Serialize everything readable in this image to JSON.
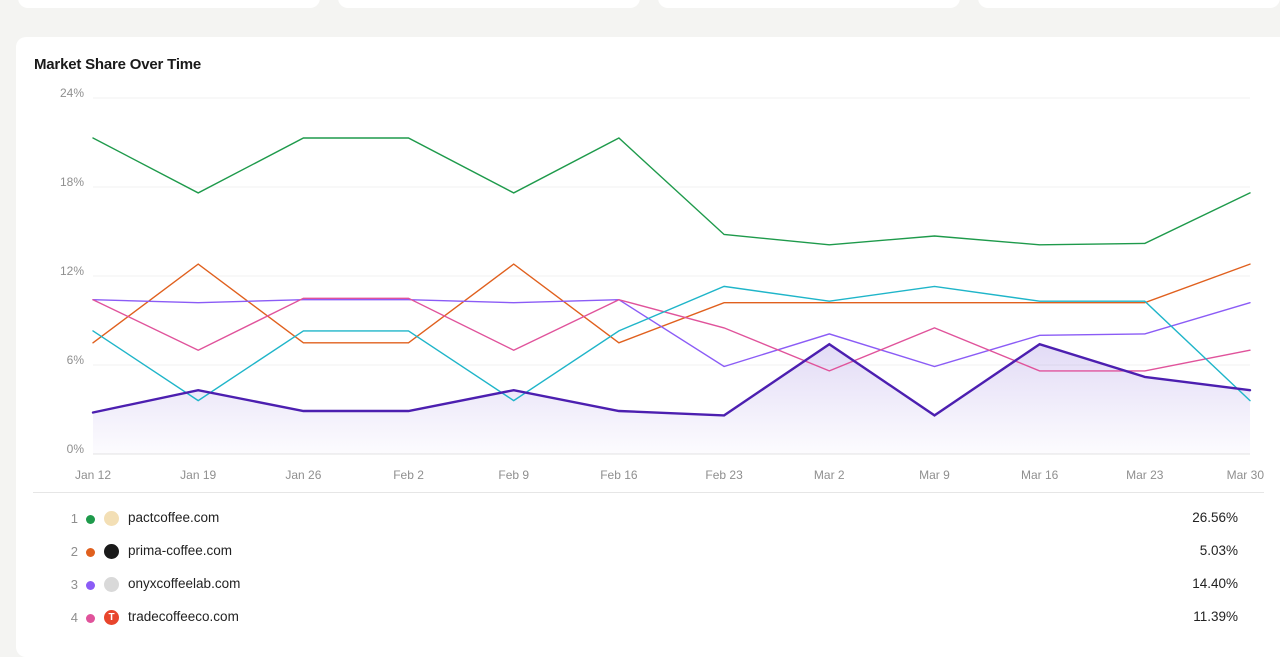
{
  "panel": {
    "title": "Market Share Over Time"
  },
  "chart_data": {
    "type": "line",
    "x": [
      "Jan 12",
      "Jan 19",
      "Jan 26",
      "Feb 2",
      "Feb 9",
      "Feb 16",
      "Feb 23",
      "Mar 2",
      "Mar 9",
      "Mar 16",
      "Mar 23",
      "Mar 30"
    ],
    "ylim": [
      0,
      24
    ],
    "yticks": [
      "0%",
      "6%",
      "12%",
      "18%",
      "24%"
    ],
    "grid": true,
    "legend": "below",
    "series": [
      {
        "color": "#1e9a4b",
        "width": 1.4,
        "values": [
          21.3,
          17.6,
          21.3,
          21.3,
          17.6,
          21.3,
          14.8,
          14.1,
          14.7,
          14.1,
          14.2,
          17.6
        ]
      },
      {
        "color": "#e0601e",
        "width": 1.4,
        "values": [
          7.5,
          12.8,
          7.5,
          7.5,
          12.8,
          7.5,
          10.2,
          10.2,
          10.2,
          10.2,
          10.2,
          12.8
        ]
      },
      {
        "color": "#8b5cf6",
        "width": 1.4,
        "values": [
          10.4,
          10.2,
          10.4,
          10.4,
          10.2,
          10.4,
          5.9,
          8.1,
          5.9,
          8.0,
          8.1,
          10.2
        ]
      },
      {
        "color": "#e0539b",
        "width": 1.4,
        "values": [
          10.4,
          7.0,
          10.5,
          10.5,
          7.0,
          10.4,
          8.5,
          5.6,
          8.5,
          5.6,
          5.6,
          7.0
        ]
      },
      {
        "color": "#1fb5c9",
        "width": 1.4,
        "values": [
          8.3,
          3.6,
          8.3,
          8.3,
          3.6,
          8.3,
          11.3,
          10.3,
          11.3,
          10.3,
          10.3,
          3.6
        ]
      },
      {
        "color": "#4c1fb0",
        "width": 2.4,
        "area": true,
        "values": [
          2.8,
          4.3,
          2.9,
          2.9,
          4.3,
          2.9,
          2.6,
          7.4,
          2.6,
          7.4,
          5.2,
          4.3
        ]
      }
    ]
  },
  "legend": [
    {
      "rank": "1",
      "domain": "pactcoffee.com",
      "value": "26.56%",
      "color": "#1e9a4b",
      "icon": "pactcoffee-favicon",
      "icon_color": "#f3dfb5"
    },
    {
      "rank": "2",
      "domain": "prima-coffee.com",
      "value": "5.03%",
      "color": "#e0601e",
      "icon": "prima-coffee-favicon",
      "icon_color": "#1a1a1a"
    },
    {
      "rank": "3",
      "domain": "onyxcoffeelab.com",
      "value": "14.40%",
      "color": "#8b5cf6",
      "icon": "onyxcoffeelab-favicon",
      "icon_color": "#d9d9d9"
    },
    {
      "rank": "4",
      "domain": "tradecoffeeco.com",
      "value": "11.39%",
      "color": "#e0539b",
      "icon": "tradecoffeeco-favicon",
      "icon_color": "#e8452c",
      "icon_letter": "T"
    }
  ]
}
